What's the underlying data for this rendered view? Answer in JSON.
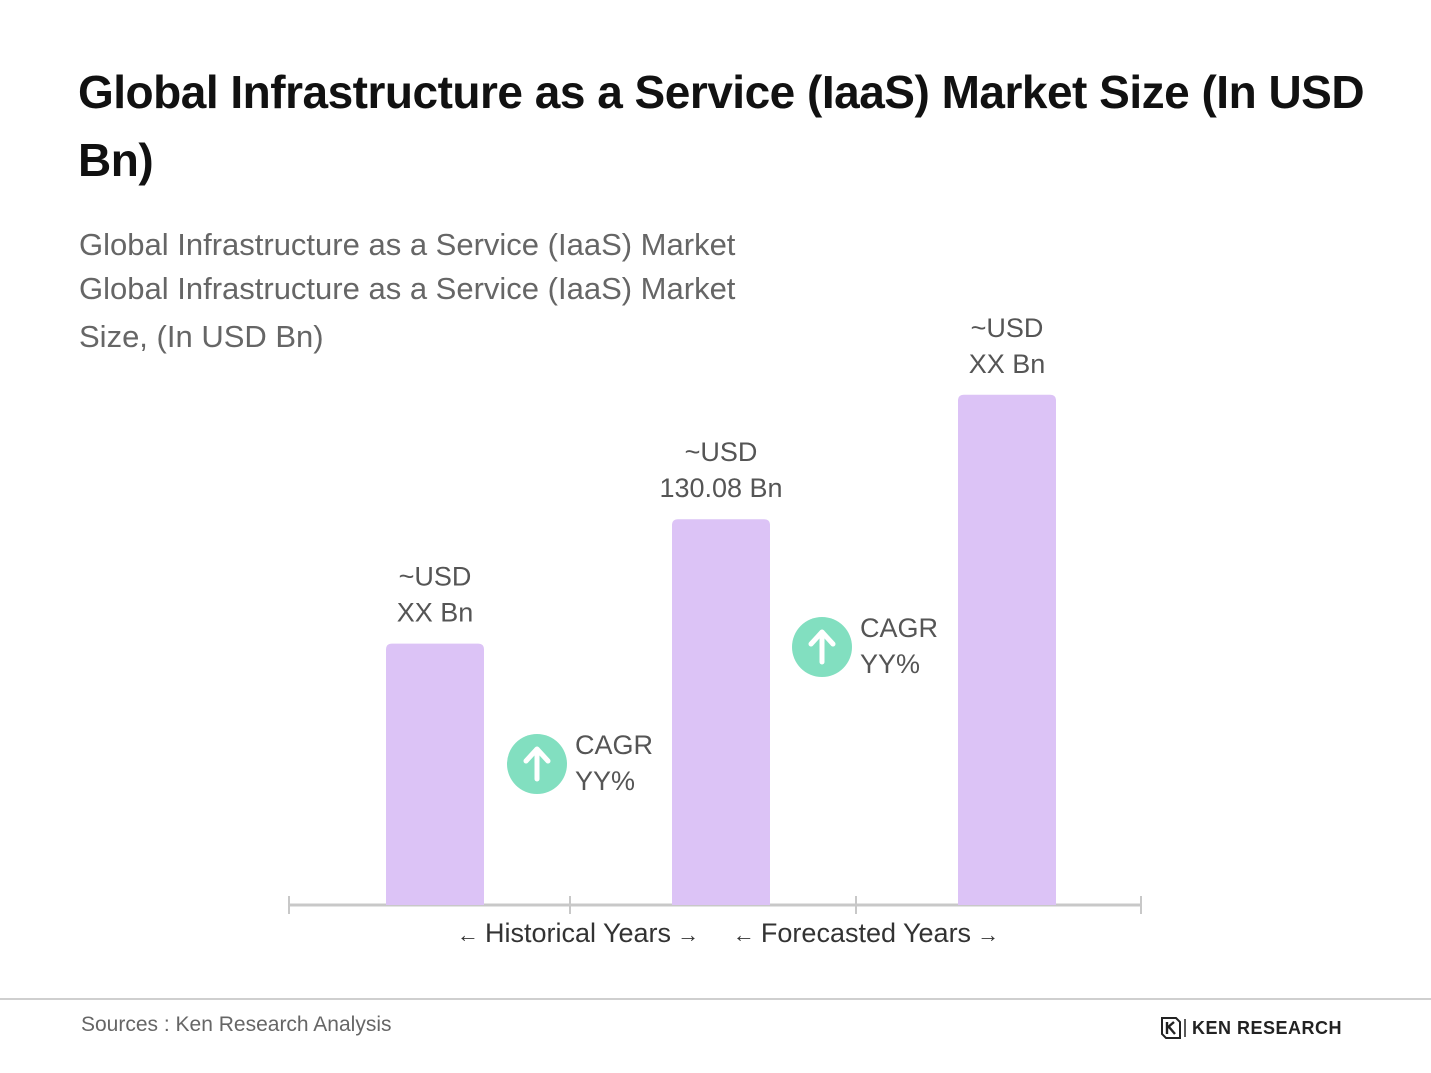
{
  "title": "Global Infrastructure as a Service (IaaS) Market Size (In USD Bn)",
  "subtitle": {
    "line1": "Global Infrastructure as a Service (IaaS) Market",
    "line2": "Global Infrastructure as a Service (IaaS) Market",
    "line3": "Size, (In USD Bn)"
  },
  "colors": {
    "bar": "#dcc3f6",
    "arrow_badge": "#82dfc0",
    "axis": "#c8c8c8",
    "label_text": "#555555",
    "period_text": "#333333"
  },
  "chart_data": {
    "type": "bar",
    "categories": [
      "",
      "",
      ""
    ],
    "values": [
      42,
      62,
      82
    ],
    "data_labels": [
      [
        "~USD",
        "XX Bn"
      ],
      [
        "~USD",
        "130.08 Bn"
      ],
      [
        "~USD",
        "XX Bn"
      ]
    ],
    "ylim": [
      0,
      90
    ],
    "grid": false,
    "annotations": [
      {
        "icon": "arrow-up-icon",
        "text": [
          "CAGR",
          "YY%"
        ],
        "between": [
          0,
          1
        ]
      },
      {
        "icon": "arrow-up-icon",
        "text": [
          "CAGR",
          "YY%"
        ],
        "between": [
          1,
          2
        ]
      }
    ],
    "period_labels": [
      {
        "text": "Historical Years",
        "left_arrow": "←",
        "right_arrow": "→"
      },
      {
        "text": "Forecasted Years",
        "left_arrow": "←",
        "right_arrow": "→"
      }
    ]
  },
  "footer": {
    "source": "Sources : Ken Research Analysis",
    "logo_text": "KEN RESEARCH",
    "logo_icon": "ken-research-logo-icon"
  }
}
